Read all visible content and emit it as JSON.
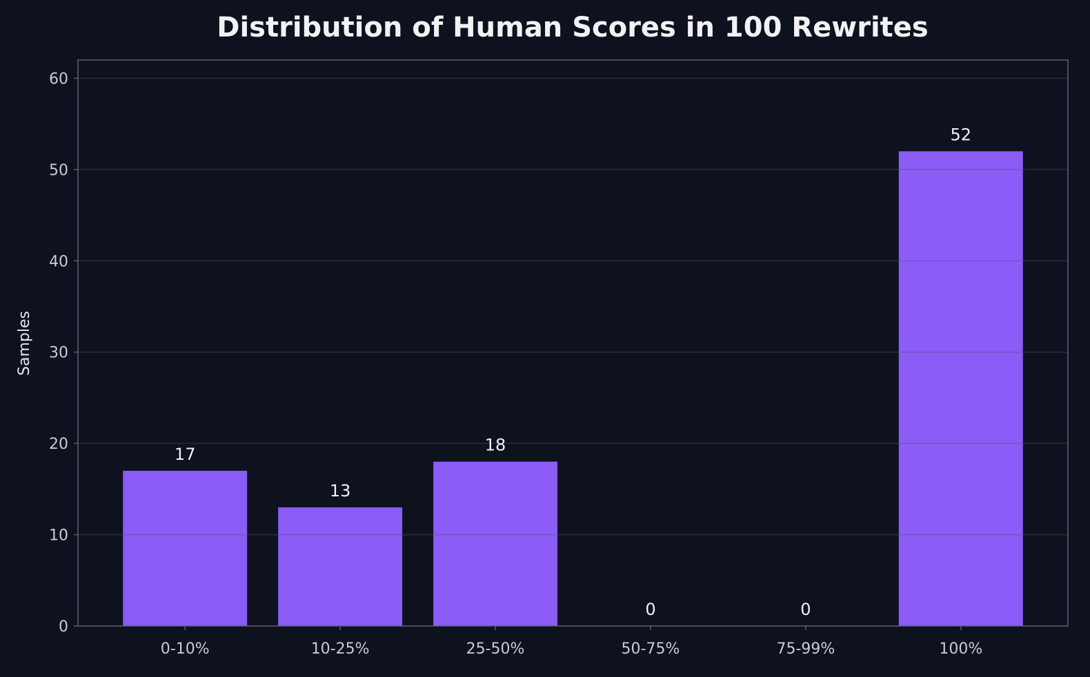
{
  "chart_data": {
    "type": "bar",
    "title": "Distribution of Human Scores in 100 Rewrites",
    "xlabel": "",
    "ylabel": "Samples",
    "categories": [
      "0-10%",
      "10-25%",
      "25-50%",
      "50-75%",
      "75-99%",
      "100%"
    ],
    "values": [
      17,
      13,
      18,
      0,
      0,
      52
    ],
    "data_labels": [
      "17",
      "13",
      "18",
      "0",
      "0",
      "52"
    ],
    "ylim": [
      0,
      62
    ],
    "yticks": [
      0,
      10,
      20,
      30,
      40,
      50,
      60
    ],
    "grid": "y",
    "colors": {
      "bar": "#8b5cf6",
      "background": "#0e111e",
      "grid": "#2a2b42",
      "axes": "#5a6070",
      "text": "#f2f2f5"
    }
  }
}
